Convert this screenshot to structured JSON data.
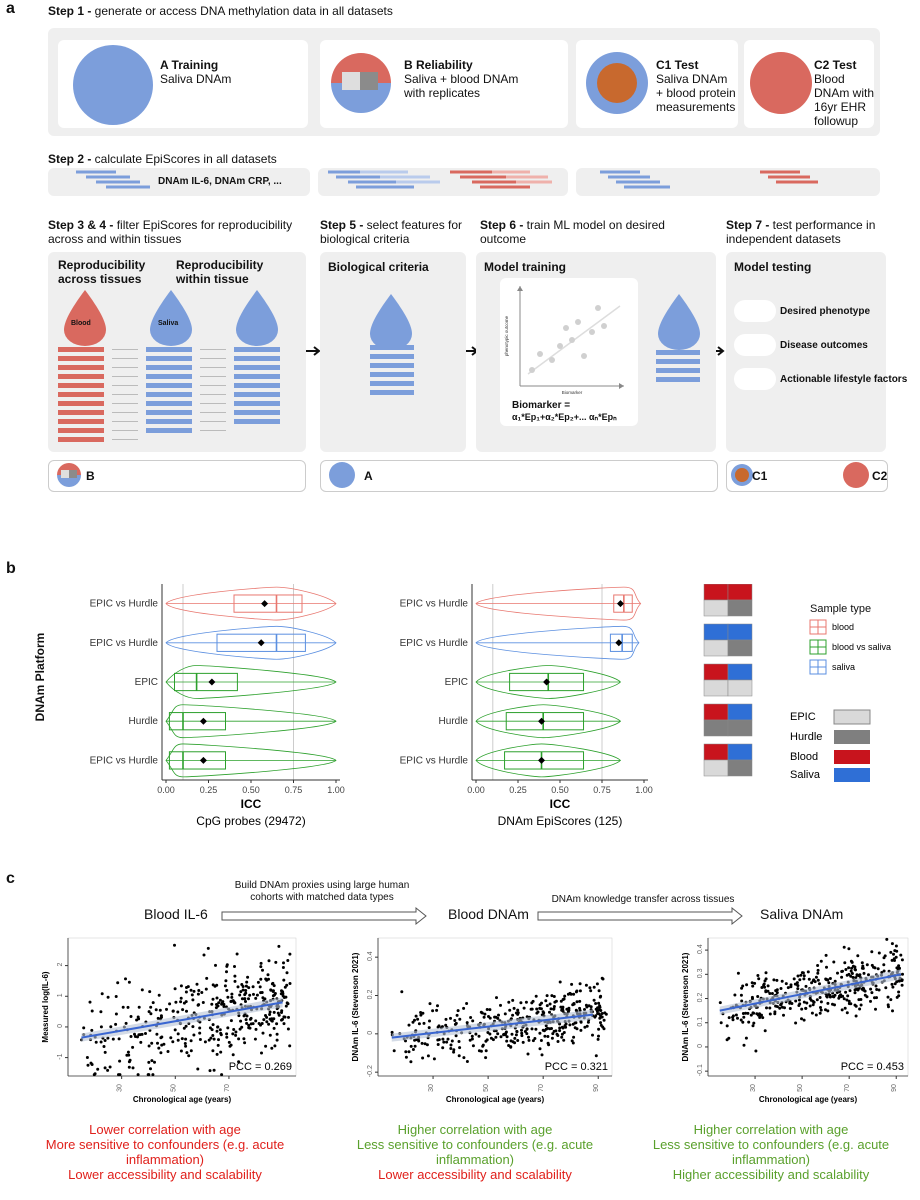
{
  "panel_a": {
    "letter": "a",
    "step1": {
      "bold": "Step 1 -",
      "text": " generate or access DNA methylation data in all datasets"
    },
    "cards": [
      {
        "title": "A Training",
        "sub": "Saliva DNAm"
      },
      {
        "title": "B Reliability",
        "sub": "Saliva + blood DNAm with replicates"
      },
      {
        "title": "C1 Test",
        "sub": "Saliva DNAm + blood protein measurements"
      },
      {
        "title": "C2 Test",
        "sub": "Blood DNAm with 16yr EHR followup"
      }
    ],
    "step2": {
      "bold": "Step 2 -",
      "text": " calculate EpiScores in all datasets"
    },
    "step2_label": "DNAm IL-6, DNAm CRP, ...",
    "step34": {
      "bold": "Step 3 & 4 -",
      "text": " filter EpiScores for reproducibility across and within tissues"
    },
    "step5": {
      "bold": "Step 5 -",
      "text": " select features for biological criteria"
    },
    "step6": {
      "bold": "Step 6 -",
      "text": " train ML model on desired outcome"
    },
    "step7": {
      "bold": "Step 7 -",
      "text": " test performance in independent datasets"
    },
    "repro_across": "Reproducibility across tissues",
    "repro_within": "Reproducibility within tissue",
    "blood_label": "Blood",
    "saliva_label": "Saliva",
    "bio_criteria": "Biological criteria",
    "model_training": "Model training",
    "mini_ylabel": "phenotypic outcome",
    "mini_xlabel": "Biomarker",
    "formula_line1": "Biomarker =",
    "formula_line2": "α₁*Ep₁+α₂*Ep₂+... αₙ*Epₙ",
    "model_testing": "Model testing",
    "testing_items": [
      "Desired phenotype",
      "Disease outcomes",
      "Actionable lifestyle factors"
    ],
    "bottom_labels": {
      "b": "B",
      "a": "A",
      "c1": "C1",
      "c2": "C2"
    }
  },
  "panel_b": {
    "letter": "b",
    "y_axis_title": "DNAm Platform",
    "legend_title": "Sample type",
    "legend_items": [
      "blood",
      "blood vs saliva",
      "saliva"
    ],
    "key_items": [
      "EPIC",
      "Hurdle",
      "Blood",
      "Saliva"
    ],
    "colors": {
      "blood": "#e8776f",
      "blood_vs_saliva": "#2ca02c",
      "saliva": "#5b8fe0",
      "dark_red": "#c8141d",
      "dark_blue": "#2f6fd6",
      "light_grey": "#d9d9d9",
      "dark_grey": "#7f7f7f"
    }
  },
  "panel_c": {
    "letter": "c",
    "flow": [
      "Blood IL-6",
      "Blood DNAm",
      "Saliva DNAm"
    ],
    "arrow1_text": "Build DNAm proxies using large human cohorts with matched data types",
    "arrow2_text": "DNAm knowledge transfer across tissues",
    "captions": [
      [
        {
          "t": "Lower correlation with age",
          "c": "red"
        },
        {
          "t": "More sensitive to confounders (e.g. acute inflammation)",
          "c": "red"
        },
        {
          "t": "Lower accessibility and scalability",
          "c": "red"
        }
      ],
      [
        {
          "t": "Higher correlation with age",
          "c": "green"
        },
        {
          "t": "Less sensitive to confounders (e.g. acute inflammation)",
          "c": "green"
        },
        {
          "t": "Lower accessibility and scalability",
          "c": "red"
        }
      ],
      [
        {
          "t": "Higher correlation with age",
          "c": "green"
        },
        {
          "t": "Less sensitive to confounders (e.g. acute inflammation)",
          "c": "green"
        },
        {
          "t": "Higher accessibility and scalability",
          "c": "green"
        }
      ]
    ]
  },
  "chart_data": [
    {
      "type": "box-violin",
      "xlabel": "ICC",
      "subtitle": "CpG probes (29472)",
      "xlim": [
        0,
        1
      ],
      "xticks": [
        "0.00",
        "0.25",
        "0.50",
        "0.75",
        "1.00"
      ],
      "categories": [
        "EPIC vs Hurdle",
        "EPIC vs Hurdle",
        "EPIC",
        "Hurdle",
        "EPIC vs Hurdle"
      ],
      "sample_type": [
        "blood",
        "saliva",
        "blood vs saliva",
        "blood vs saliva",
        "blood vs saliva"
      ],
      "q1": [
        0.4,
        0.3,
        0.05,
        0.02,
        0.02
      ],
      "median": [
        0.65,
        0.65,
        0.18,
        0.1,
        0.1
      ],
      "q3": [
        0.8,
        0.82,
        0.42,
        0.35,
        0.35
      ],
      "mean": [
        0.58,
        0.56,
        0.27,
        0.22,
        0.22
      ],
      "whisker_lo": [
        0.0,
        0.0,
        0.0,
        0.0,
        0.0
      ],
      "whisker_hi": [
        1.0,
        1.0,
        1.0,
        1.0,
        1.0
      ]
    },
    {
      "type": "box-violin",
      "xlabel": "ICC",
      "subtitle": "DNAm EpiScores (125)",
      "xlim": [
        0,
        1
      ],
      "xticks": [
        "0.00",
        "0.25",
        "0.50",
        "0.75",
        "1.00"
      ],
      "categories": [
        "EPIC vs Hurdle",
        "EPIC vs Hurdle",
        "EPIC",
        "Hurdle",
        "EPIC vs Hurdle"
      ],
      "sample_type": [
        "blood",
        "saliva",
        "blood vs saliva",
        "blood vs saliva",
        "blood vs saliva"
      ],
      "q1": [
        0.82,
        0.8,
        0.2,
        0.18,
        0.17
      ],
      "median": [
        0.88,
        0.87,
        0.43,
        0.4,
        0.39
      ],
      "q3": [
        0.93,
        0.93,
        0.64,
        0.64,
        0.64
      ],
      "mean": [
        0.86,
        0.85,
        0.42,
        0.39,
        0.39
      ],
      "whisker_lo": [
        0.0,
        0.0,
        0.0,
        0.0,
        0.0
      ],
      "whisker_hi": [
        0.98,
        0.97,
        0.86,
        0.86,
        0.86
      ]
    },
    {
      "type": "scatter",
      "xlabel": "Chronological age (years)",
      "ylabel": "Measured log(IL-6)",
      "annotation": "PCC = 0.269",
      "xlim": [
        10,
        95
      ],
      "ylim": [
        -1.6,
        2.9
      ],
      "xticks": [
        30,
        50,
        70
      ],
      "yticks": [
        -1,
        0,
        1,
        2
      ],
      "trend": {
        "x": [
          15,
          90
        ],
        "y": [
          -0.35,
          0.8
        ]
      },
      "n_points": 420
    },
    {
      "type": "scatter",
      "xlabel": "Chronological age (years)",
      "ylabel": "DNAm IL-6 (Stevenson 2021)",
      "annotation": "PCC = 0.321",
      "xlim": [
        10,
        95
      ],
      "ylim": [
        -0.22,
        0.5
      ],
      "xticks": [
        30,
        50,
        70,
        90
      ],
      "yticks": [
        -0.2,
        0.0,
        0.2,
        0.4
      ],
      "trend": {
        "x": [
          15,
          88
        ],
        "y": [
          -0.02,
          0.1
        ]
      },
      "n_points": 420
    },
    {
      "type": "scatter",
      "xlabel": "Chronological age (years)",
      "ylabel": "DNAm IL-6 (Stevenson 2021)",
      "annotation": "PCC = 0.453",
      "xlim": [
        10,
        95
      ],
      "ylim": [
        -0.12,
        0.45
      ],
      "xticks": [
        30,
        50,
        70,
        90
      ],
      "yticks": [
        -0.1,
        0.0,
        0.1,
        0.2,
        0.3,
        0.4
      ],
      "trend": {
        "x": [
          15,
          92
        ],
        "y": [
          0.15,
          0.3
        ]
      },
      "n_points": 420
    }
  ]
}
